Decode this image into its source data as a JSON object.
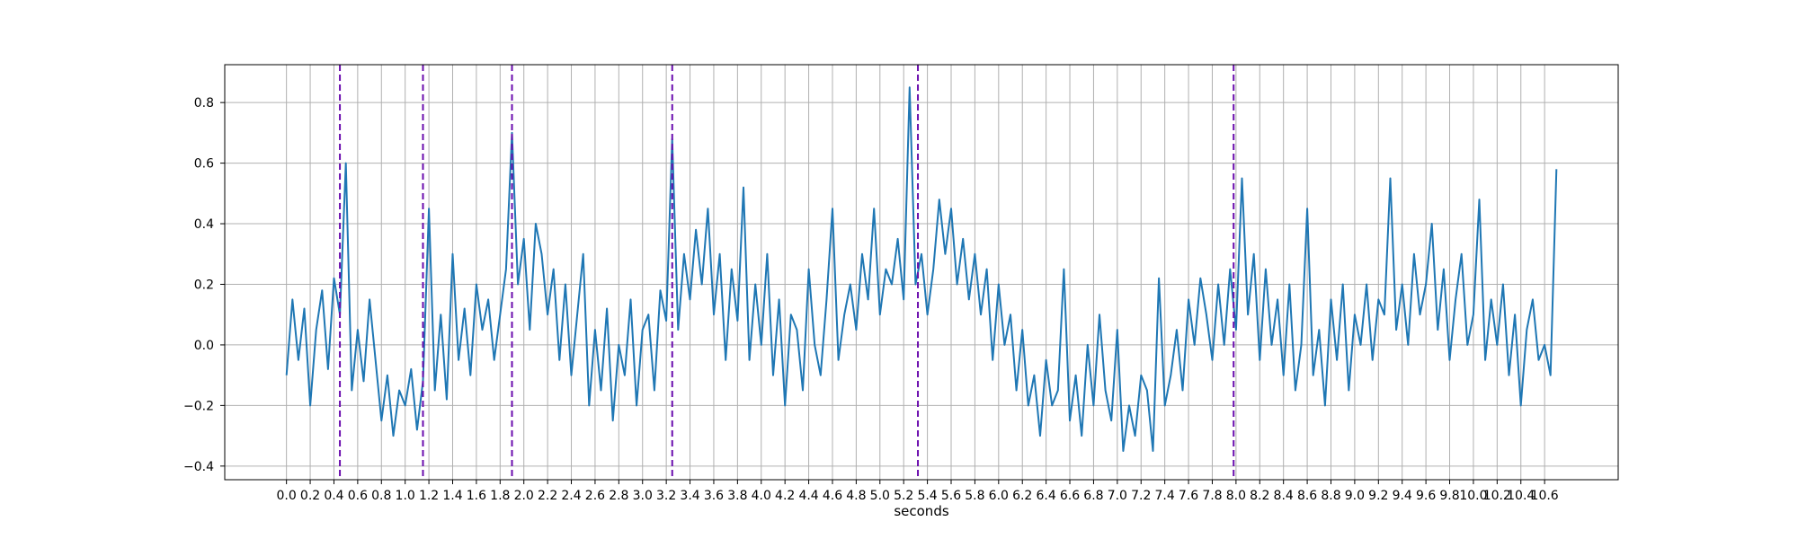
{
  "chart_data": {
    "type": "line",
    "title": "",
    "xlabel": "seconds",
    "ylabel": "",
    "xlim": [
      -0.52,
      11.22
    ],
    "ylim": [
      -0.445,
      0.925
    ],
    "grid": true,
    "x_ticks": [
      0.0,
      0.2,
      0.4,
      0.6,
      0.8,
      1.0,
      1.2,
      1.4,
      1.6,
      1.8,
      2.0,
      2.2,
      2.4,
      2.6,
      2.8,
      3.0,
      3.2,
      3.4,
      3.6,
      3.8,
      4.0,
      4.2,
      4.4,
      4.6,
      4.8,
      5.0,
      5.2,
      5.4,
      5.6,
      5.8,
      6.0,
      6.2,
      6.4,
      6.6,
      6.8,
      7.0,
      7.2,
      7.4,
      7.6,
      7.8,
      8.0,
      8.2,
      8.4,
      8.6,
      8.8,
      9.0,
      9.2,
      9.4,
      9.6,
      9.8,
      10.0,
      10.2,
      10.4,
      10.6
    ],
    "x_tick_labels": [
      "0.0",
      "0.2",
      "0.4",
      "0.6",
      "0.8",
      "1.0",
      "1.2",
      "1.4",
      "1.6",
      "1.8",
      "2.0",
      "2.2",
      "2.4",
      "2.6",
      "2.8",
      "3.0",
      "3.2",
      "3.4",
      "3.6",
      "3.8",
      "4.0",
      "4.2",
      "4.4",
      "4.6",
      "4.8",
      "5.0",
      "5.2",
      "5.4",
      "5.6",
      "5.8",
      "6.0",
      "6.2",
      "6.4",
      "6.6",
      "6.8",
      "7.0",
      "7.2",
      "7.4",
      "7.6",
      "7.8",
      "8.0",
      "8.2",
      "8.4",
      "8.6",
      "8.8",
      "9.0",
      "9.2",
      "9.4",
      "9.6",
      "9.8",
      "10.0",
      "10.2",
      "10.4",
      "10.6"
    ],
    "y_ticks": [
      -0.4,
      -0.2,
      0.0,
      0.2,
      0.4,
      0.6,
      0.8
    ],
    "y_tick_labels": [
      "−0.4",
      "−0.2",
      "0.0",
      "0.2",
      "0.4",
      "0.6",
      "0.8"
    ],
    "series": [
      {
        "color": "#1f77b4",
        "x": [
          0.0,
          0.05,
          0.1,
          0.15,
          0.2,
          0.25,
          0.3,
          0.35,
          0.4,
          0.45,
          0.5,
          0.55,
          0.6,
          0.65,
          0.7,
          0.75,
          0.8,
          0.85,
          0.9,
          0.95,
          1.0,
          1.05,
          1.1,
          1.15,
          1.2,
          1.25,
          1.3,
          1.35,
          1.4,
          1.45,
          1.5,
          1.55,
          1.6,
          1.65,
          1.7,
          1.75,
          1.8,
          1.85,
          1.9,
          1.95,
          2.0,
          2.05,
          2.1,
          2.15,
          2.2,
          2.25,
          2.3,
          2.35,
          2.4,
          2.45,
          2.5,
          2.55,
          2.6,
          2.65,
          2.7,
          2.75,
          2.8,
          2.85,
          2.9,
          2.95,
          3.0,
          3.05,
          3.1,
          3.15,
          3.2,
          3.25,
          3.3,
          3.35,
          3.4,
          3.45,
          3.5,
          3.55,
          3.6,
          3.65,
          3.7,
          3.75,
          3.8,
          3.85,
          3.9,
          3.95,
          4.0,
          4.05,
          4.1,
          4.15,
          4.2,
          4.25,
          4.3,
          4.35,
          4.4,
          4.45,
          4.5,
          4.55,
          4.6,
          4.65,
          4.7,
          4.75,
          4.8,
          4.85,
          4.9,
          4.95,
          5.0,
          5.05,
          5.1,
          5.15,
          5.2,
          5.25,
          5.3,
          5.35,
          5.4,
          5.45,
          5.5,
          5.55,
          5.6,
          5.65,
          5.7,
          5.75,
          5.8,
          5.85,
          5.9,
          5.95,
          6.0,
          6.05,
          6.1,
          6.15,
          6.2,
          6.25,
          6.3,
          6.35,
          6.4,
          6.45,
          6.5,
          6.55,
          6.6,
          6.65,
          6.7,
          6.75,
          6.8,
          6.85,
          6.9,
          6.95,
          7.0,
          7.05,
          7.1,
          7.15,
          7.2,
          7.25,
          7.3,
          7.35,
          7.4,
          7.45,
          7.5,
          7.55,
          7.6,
          7.65,
          7.7,
          7.75,
          7.8,
          7.85,
          7.9,
          7.95,
          8.0,
          8.05,
          8.1,
          8.15,
          8.2,
          8.25,
          8.3,
          8.35,
          8.4,
          8.45,
          8.5,
          8.55,
          8.6,
          8.65,
          8.7,
          8.75,
          8.8,
          8.85,
          8.9,
          8.95,
          9.0,
          9.05,
          9.1,
          9.15,
          9.2,
          9.25,
          9.3,
          9.35,
          9.4,
          9.45,
          9.5,
          9.55,
          9.6,
          9.65,
          9.7,
          9.75,
          9.8,
          9.85,
          9.9,
          9.95,
          10.0,
          10.05,
          10.1,
          10.15,
          10.2,
          10.25,
          10.3,
          10.35,
          10.4,
          10.45,
          10.5,
          10.55,
          10.6,
          10.65,
          10.7
        ],
        "y": [
          -0.1,
          0.15,
          -0.05,
          0.12,
          -0.2,
          0.05,
          0.18,
          -0.08,
          0.22,
          0.1,
          0.6,
          -0.15,
          0.05,
          -0.12,
          0.15,
          -0.05,
          -0.25,
          -0.1,
          -0.3,
          -0.15,
          -0.2,
          -0.08,
          -0.28,
          -0.12,
          0.45,
          -0.15,
          0.1,
          -0.18,
          0.3,
          -0.05,
          0.12,
          -0.1,
          0.2,
          0.05,
          0.15,
          -0.05,
          0.1,
          0.25,
          0.7,
          0.2,
          0.35,
          0.05,
          0.4,
          0.3,
          0.1,
          0.25,
          -0.05,
          0.2,
          -0.1,
          0.1,
          0.3,
          -0.2,
          0.05,
          -0.15,
          0.12,
          -0.25,
          0.0,
          -0.1,
          0.15,
          -0.2,
          0.05,
          0.1,
          -0.15,
          0.18,
          0.08,
          0.68,
          0.05,
          0.3,
          0.15,
          0.38,
          0.2,
          0.45,
          0.1,
          0.3,
          -0.05,
          0.25,
          0.08,
          0.52,
          -0.05,
          0.2,
          0.0,
          0.3,
          -0.1,
          0.15,
          -0.2,
          0.1,
          0.05,
          -0.15,
          0.25,
          0.0,
          -0.1,
          0.15,
          0.45,
          -0.05,
          0.1,
          0.2,
          0.05,
          0.3,
          0.15,
          0.45,
          0.1,
          0.25,
          0.2,
          0.35,
          0.15,
          0.85,
          0.2,
          0.3,
          0.1,
          0.25,
          0.48,
          0.3,
          0.45,
          0.2,
          0.35,
          0.15,
          0.3,
          0.1,
          0.25,
          -0.05,
          0.2,
          0.0,
          0.1,
          -0.15,
          0.05,
          -0.2,
          -0.1,
          -0.3,
          -0.05,
          -0.2,
          -0.15,
          0.25,
          -0.25,
          -0.1,
          -0.3,
          0.0,
          -0.2,
          0.1,
          -0.15,
          -0.25,
          0.05,
          -0.35,
          -0.2,
          -0.3,
          -0.1,
          -0.15,
          -0.35,
          0.22,
          -0.2,
          -0.1,
          0.05,
          -0.15,
          0.15,
          0.0,
          0.22,
          0.1,
          -0.05,
          0.2,
          0.0,
          0.25,
          0.05,
          0.55,
          0.1,
          0.3,
          -0.05,
          0.25,
          0.0,
          0.15,
          -0.1,
          0.2,
          -0.15,
          0.0,
          0.45,
          -0.1,
          0.05,
          -0.2,
          0.15,
          -0.05,
          0.2,
          -0.15,
          0.1,
          0.0,
          0.2,
          -0.05,
          0.15,
          0.1,
          0.55,
          0.05,
          0.2,
          0.0,
          0.3,
          0.1,
          0.2,
          0.4,
          0.05,
          0.25,
          -0.05,
          0.15,
          0.3,
          0.0,
          0.1,
          0.48,
          -0.05,
          0.15,
          0.0,
          0.2,
          -0.1,
          0.1,
          -0.2,
          0.05,
          0.15,
          -0.05,
          0.0,
          -0.1,
          0.58
        ]
      }
    ],
    "vlines": {
      "color": "#6a0dad",
      "style": "dashed",
      "x": [
        0.45,
        1.15,
        1.9,
        3.25,
        5.32,
        7.98
      ]
    }
  }
}
